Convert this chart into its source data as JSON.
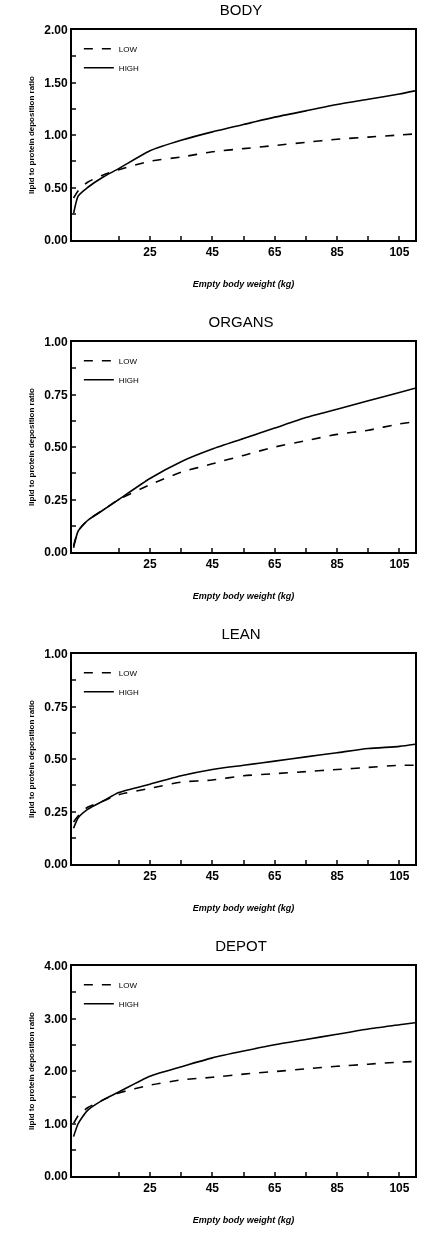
{
  "chart_data": [
    {
      "type": "line",
      "title": "BODY",
      "xlabel": "Empty body weight (kg)",
      "ylabel": "lipid to protein deposition ratio",
      "x": [
        0.5,
        2,
        5,
        10,
        15,
        25,
        35,
        45,
        55,
        65,
        75,
        85,
        95,
        105,
        110
      ],
      "series": [
        {
          "name": "LOW",
          "color": "#000000",
          "line_style": "dashed",
          "values": [
            0.4,
            0.47,
            0.55,
            0.62,
            0.67,
            0.75,
            0.79,
            0.84,
            0.87,
            0.9,
            0.93,
            0.96,
            0.98,
            1.0,
            1.01
          ]
        },
        {
          "name": "HIGH",
          "color": "#000000",
          "line_style": "solid",
          "values": [
            0.25,
            0.42,
            0.5,
            0.6,
            0.68,
            0.85,
            0.95,
            1.03,
            1.1,
            1.17,
            1.23,
            1.29,
            1.34,
            1.39,
            1.42
          ]
        }
      ],
      "xlim": [
        0,
        110
      ],
      "xticks": [
        {
          "value": 15,
          "label": null
        },
        25,
        {
          "value": 35,
          "label": null
        },
        45,
        {
          "value": 55,
          "label": null
        },
        65,
        {
          "value": 75,
          "label": null
        },
        85,
        {
          "value": 95,
          "label": null
        },
        105
      ],
      "ylim": [
        0,
        2
      ],
      "yticks": [
        {
          "value": 0,
          "label": "0.00"
        },
        {
          "value": 0.25,
          "label": null
        },
        {
          "value": 0.5,
          "label": "0.50"
        },
        {
          "value": 0.75,
          "label": null
        },
        {
          "value": 1,
          "label": "1.00"
        },
        {
          "value": 1.25,
          "label": null
        },
        {
          "value": 1.5,
          "label": "1.50"
        },
        {
          "value": 1.75,
          "label": null
        },
        {
          "value": 2,
          "label": "2.00"
        }
      ],
      "grid": false,
      "legend": "top left",
      "marker": "none"
    },
    {
      "type": "line",
      "title": "ORGANS",
      "xlabel": "Empty body weight (kg)",
      "ylabel": "lipid to protein deposition ratio",
      "x": [
        0.5,
        2,
        5,
        10,
        15,
        25,
        35,
        45,
        55,
        65,
        75,
        85,
        95,
        105,
        110
      ],
      "series": [
        {
          "name": "LOW",
          "color": "#000000",
          "line_style": "dashed",
          "values": [
            0.03,
            0.1,
            0.15,
            0.2,
            0.25,
            0.32,
            0.38,
            0.42,
            0.46,
            0.5,
            0.53,
            0.56,
            0.58,
            0.61,
            0.62
          ]
        },
        {
          "name": "HIGH",
          "color": "#000000",
          "line_style": "solid",
          "values": [
            0.02,
            0.1,
            0.15,
            0.2,
            0.25,
            0.35,
            0.43,
            0.49,
            0.54,
            0.59,
            0.64,
            0.68,
            0.72,
            0.76,
            0.78
          ]
        }
      ],
      "xlim": [
        0,
        110
      ],
      "xticks": [
        {
          "value": 15,
          "label": null
        },
        25,
        {
          "value": 35,
          "label": null
        },
        45,
        {
          "value": 55,
          "label": null
        },
        65,
        {
          "value": 75,
          "label": null
        },
        85,
        {
          "value": 95,
          "label": null
        },
        105
      ],
      "ylim": [
        0,
        1
      ],
      "yticks": [
        {
          "value": 0,
          "label": "0.00"
        },
        {
          "value": 0.125,
          "label": null
        },
        {
          "value": 0.25,
          "label": "0.25"
        },
        {
          "value": 0.375,
          "label": null
        },
        {
          "value": 0.5,
          "label": "0.50"
        },
        {
          "value": 0.625,
          "label": null
        },
        {
          "value": 0.75,
          "label": "0.75"
        },
        {
          "value": 0.875,
          "label": null
        },
        {
          "value": 1,
          "label": "1.00"
        }
      ],
      "grid": false,
      "legend": "top left",
      "marker": "none"
    },
    {
      "type": "line",
      "title": "LEAN",
      "xlabel": "Empty body weight (kg)",
      "ylabel": "lipid to protein deposition ratio",
      "x": [
        0.5,
        2,
        5,
        10,
        15,
        25,
        35,
        45,
        55,
        65,
        75,
        85,
        95,
        105,
        110
      ],
      "series": [
        {
          "name": "LOW",
          "color": "#000000",
          "line_style": "dashed",
          "values": [
            0.2,
            0.23,
            0.27,
            0.3,
            0.33,
            0.36,
            0.39,
            0.4,
            0.42,
            0.43,
            0.44,
            0.45,
            0.46,
            0.47,
            0.47
          ]
        },
        {
          "name": "HIGH",
          "color": "#000000",
          "line_style": "solid",
          "values": [
            0.17,
            0.22,
            0.26,
            0.3,
            0.34,
            0.38,
            0.42,
            0.45,
            0.47,
            0.49,
            0.51,
            0.53,
            0.55,
            0.56,
            0.57
          ]
        }
      ],
      "xlim": [
        0,
        110
      ],
      "xticks": [
        {
          "value": 15,
          "label": null
        },
        25,
        {
          "value": 35,
          "label": null
        },
        45,
        {
          "value": 55,
          "label": null
        },
        65,
        {
          "value": 75,
          "label": null
        },
        85,
        {
          "value": 95,
          "label": null
        },
        105
      ],
      "ylim": [
        0,
        1
      ],
      "yticks": [
        {
          "value": 0,
          "label": "0.00"
        },
        {
          "value": 0.125,
          "label": null
        },
        {
          "value": 0.25,
          "label": "0.25"
        },
        {
          "value": 0.375,
          "label": null
        },
        {
          "value": 0.5,
          "label": "0.50"
        },
        {
          "value": 0.625,
          "label": null
        },
        {
          "value": 0.75,
          "label": "0.75"
        },
        {
          "value": 0.875,
          "label": null
        },
        {
          "value": 1,
          "label": "1.00"
        }
      ],
      "grid": false,
      "legend": "top left",
      "marker": "none"
    },
    {
      "type": "line",
      "title": "DEPOT",
      "xlabel": "Empty body weight (kg)",
      "ylabel": "lipid to protein deposition ratio",
      "x": [
        0.5,
        2,
        5,
        10,
        15,
        25,
        35,
        45,
        55,
        65,
        75,
        85,
        95,
        105,
        110
      ],
      "series": [
        {
          "name": "LOW",
          "color": "#000000",
          "line_style": "dashed",
          "values": [
            1.0,
            1.15,
            1.3,
            1.45,
            1.58,
            1.73,
            1.83,
            1.88,
            1.94,
            1.99,
            2.04,
            2.09,
            2.13,
            2.17,
            2.18
          ]
        },
        {
          "name": "HIGH",
          "color": "#000000",
          "line_style": "solid",
          "values": [
            0.75,
            1.0,
            1.25,
            1.45,
            1.6,
            1.9,
            2.08,
            2.25,
            2.38,
            2.5,
            2.6,
            2.7,
            2.8,
            2.88,
            2.92
          ]
        }
      ],
      "xlim": [
        0,
        110
      ],
      "xticks": [
        {
          "value": 15,
          "label": null
        },
        25,
        {
          "value": 35,
          "label": null
        },
        45,
        {
          "value": 55,
          "label": null
        },
        65,
        {
          "value": 75,
          "label": null
        },
        85,
        {
          "value": 95,
          "label": null
        },
        105
      ],
      "ylim": [
        0,
        4
      ],
      "yticks": [
        {
          "value": 0,
          "label": "0.00"
        },
        {
          "value": 0.5,
          "label": null
        },
        {
          "value": 1,
          "label": "1.00"
        },
        {
          "value": 1.5,
          "label": null
        },
        {
          "value": 2,
          "label": "2.00"
        },
        {
          "value": 2.5,
          "label": null
        },
        {
          "value": 3,
          "label": "3.00"
        },
        {
          "value": 3.5,
          "label": null
        },
        {
          "value": 4,
          "label": "4.00"
        }
      ],
      "grid": false,
      "legend": "top left",
      "marker": "none"
    }
  ]
}
